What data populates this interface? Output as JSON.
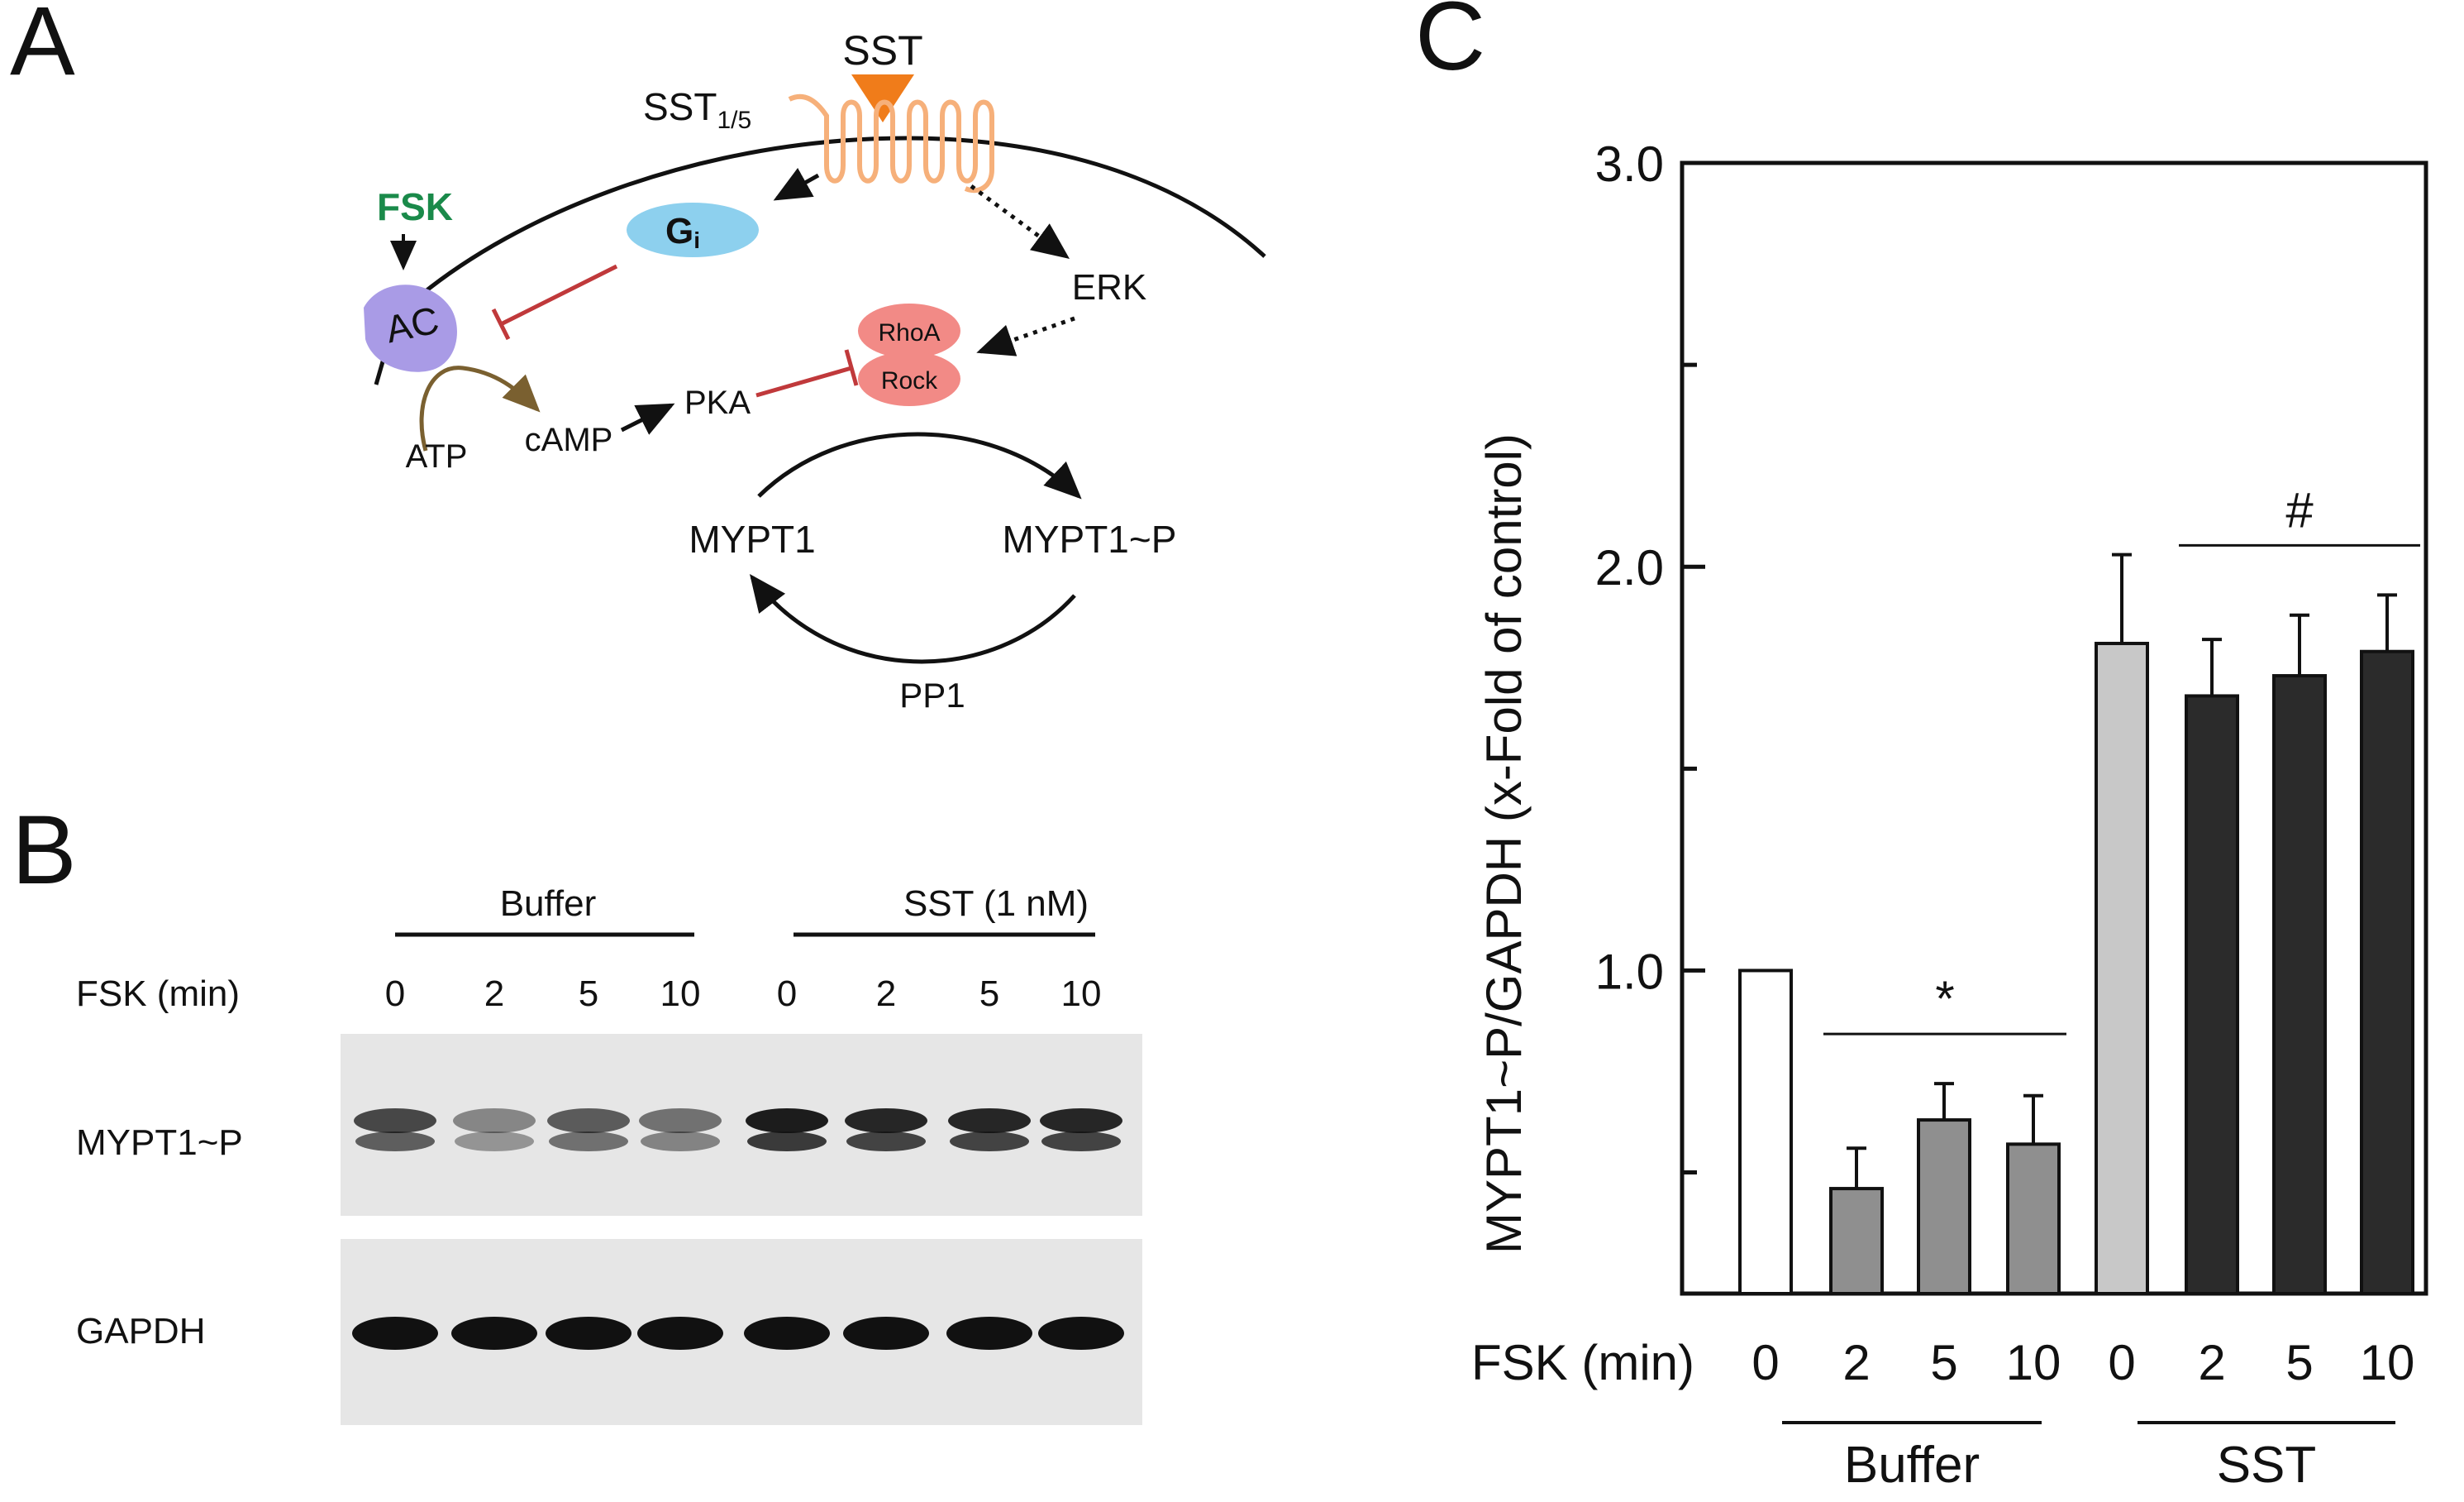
{
  "panel_a": {
    "letter": "A",
    "labels": {
      "sst": "SST",
      "sst_receptor": "SST",
      "sst_receptor_sub": "1/5",
      "fsk": "FSK",
      "gi": "G",
      "gi_sub": "i",
      "ac": "AC",
      "erk": "ERK",
      "rhoa": "RhoA",
      "rock": "Rock",
      "pka": "PKA",
      "camp": "cAMP",
      "atp": "ATP",
      "mypt1": "MYPT1",
      "mypt1p": "MYPT1~P",
      "pp1": "PP1"
    },
    "colors": {
      "sst_triangle": "#f07c1a",
      "receptor": "#f6b07a",
      "fsk": "#1a8a4a",
      "gi": "#8dd0ee",
      "ac": "#a99be6",
      "rho": "#f28a86",
      "inhibit": "#c0393b",
      "atp_arrow": "#7a6030"
    }
  },
  "panel_b": {
    "letter": "B",
    "group_labels": [
      "Buffer",
      "SST (1 nM)"
    ],
    "fsk_label": "FSK (min)",
    "lanes": [
      "0",
      "2",
      "5",
      "10",
      "0",
      "2",
      "5",
      "10"
    ],
    "blot_labels": [
      "MYPT1~P",
      "GAPDH"
    ]
  },
  "panel_c": {
    "letter": "C"
  },
  "chart_data": {
    "type": "bar",
    "ylabel": "MYPT1~P/GAPDH (x-Fold of control)",
    "xlabel_prefix": "FSK (min)",
    "ylim": [
      0.2,
      3.0
    ],
    "yticks": [
      "1.0",
      "2.0",
      "3.0"
    ],
    "yticks_values": [
      1.0,
      2.0,
      3.0
    ],
    "minor_ticks": [
      0.5,
      1.5,
      2.5
    ],
    "categories": [
      "0",
      "2",
      "5",
      "10",
      "0",
      "2",
      "5",
      "10"
    ],
    "values": [
      1.0,
      0.46,
      0.63,
      0.57,
      1.81,
      1.68,
      1.73,
      1.79
    ],
    "errors": [
      0,
      0.1,
      0.09,
      0.12,
      0.22,
      0.14,
      0.15,
      0.14
    ],
    "bar_colors": [
      "#ffffff",
      "#8f8f8f",
      "#8f8f8f",
      "#8f8f8f",
      "#c8c8c8",
      "#2b2b2b",
      "#2b2b2b",
      "#2b2b2b"
    ],
    "groups": [
      {
        "name": "Buffer",
        "from": 1,
        "to": 3,
        "sig": "*"
      },
      {
        "name": "SST",
        "from": 5,
        "to": 7,
        "sig": "#"
      }
    ],
    "group_labels": [
      "Buffer",
      "SST"
    ],
    "significance": [
      "*",
      "#"
    ]
  }
}
